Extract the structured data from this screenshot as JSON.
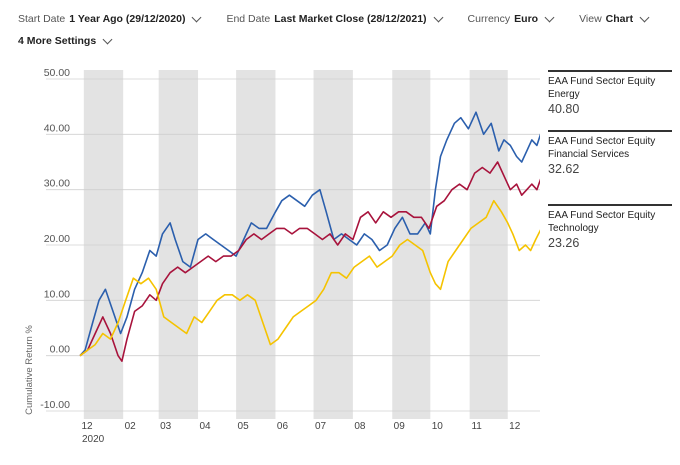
{
  "settings": {
    "start_label": "Start Date",
    "start_value": "1 Year Ago (29/12/2020)",
    "end_label": "End Date",
    "end_value": "Last Market Close (28/12/2021)",
    "currency_label": "Currency",
    "currency_value": "Euro",
    "view_label": "View",
    "view_value": "Chart",
    "more_label": "4 More Settings"
  },
  "chart_data": {
    "type": "line",
    "ylabel": "Cumulative Return %",
    "ylim": [
      -10,
      50
    ],
    "yticks": [
      50,
      40,
      30,
      20,
      10,
      0,
      -10
    ],
    "ytick_labels": [
      "50.00",
      "40.00",
      "30.00",
      "20.00",
      "10.00",
      "0.00",
      "-10.00"
    ],
    "xlim": [
      "2020-12-29",
      "2021-12-28"
    ],
    "xticks": [
      {
        "date": "2020-12-29",
        "label": "12",
        "sublabel": "2020"
      },
      {
        "date": "2021-02-01",
        "label": "02"
      },
      {
        "date": "2021-03-01",
        "label": "03"
      },
      {
        "date": "2021-04-01",
        "label": "04"
      },
      {
        "date": "2021-05-01",
        "label": "05"
      },
      {
        "date": "2021-06-01",
        "label": "06"
      },
      {
        "date": "2021-07-01",
        "label": "07"
      },
      {
        "date": "2021-08-01",
        "label": "08"
      },
      {
        "date": "2021-09-01",
        "label": "09"
      },
      {
        "date": "2021-10-01",
        "label": "10"
      },
      {
        "date": "2021-11-01",
        "label": "11"
      },
      {
        "date": "2021-12-01",
        "label": "12"
      }
    ],
    "shaded_bands": [
      [
        "2021-01-01",
        "2021-02-01"
      ],
      [
        "2021-03-01",
        "2021-04-01"
      ],
      [
        "2021-05-01",
        "2021-06-01"
      ],
      [
        "2021-07-01",
        "2021-08-01"
      ],
      [
        "2021-09-01",
        "2021-10-01"
      ],
      [
        "2021-11-01",
        "2021-12-01"
      ]
    ],
    "series": [
      {
        "name": "EAA Fund Sector Equity Energy",
        "last": "40.80",
        "color": "#2b5fad",
        "points": [
          [
            "2020-12-29",
            0
          ],
          [
            "2021-01-02",
            1
          ],
          [
            "2021-01-08",
            6
          ],
          [
            "2021-01-13",
            10
          ],
          [
            "2021-01-18",
            12
          ],
          [
            "2021-01-24",
            8
          ],
          [
            "2021-01-30",
            4
          ],
          [
            "2021-02-04",
            7
          ],
          [
            "2021-02-10",
            12
          ],
          [
            "2021-02-16",
            15
          ],
          [
            "2021-02-22",
            19
          ],
          [
            "2021-02-27",
            18
          ],
          [
            "2021-03-04",
            22
          ],
          [
            "2021-03-10",
            24
          ],
          [
            "2021-03-14",
            21
          ],
          [
            "2021-03-20",
            17
          ],
          [
            "2021-03-26",
            16
          ],
          [
            "2021-04-01",
            21
          ],
          [
            "2021-04-07",
            22
          ],
          [
            "2021-04-13",
            21
          ],
          [
            "2021-04-19",
            20
          ],
          [
            "2021-04-25",
            19
          ],
          [
            "2021-05-01",
            18
          ],
          [
            "2021-05-07",
            21
          ],
          [
            "2021-05-13",
            24
          ],
          [
            "2021-05-19",
            23
          ],
          [
            "2021-05-25",
            23
          ],
          [
            "2021-06-01",
            26
          ],
          [
            "2021-06-06",
            28
          ],
          [
            "2021-06-12",
            29
          ],
          [
            "2021-06-18",
            28
          ],
          [
            "2021-06-24",
            27
          ],
          [
            "2021-06-30",
            29
          ],
          [
            "2021-07-06",
            30
          ],
          [
            "2021-07-11",
            26
          ],
          [
            "2021-07-17",
            21
          ],
          [
            "2021-07-23",
            22
          ],
          [
            "2021-07-29",
            21
          ],
          [
            "2021-08-04",
            20
          ],
          [
            "2021-08-10",
            22
          ],
          [
            "2021-08-16",
            21
          ],
          [
            "2021-08-22",
            19
          ],
          [
            "2021-08-28",
            20
          ],
          [
            "2021-09-03",
            23
          ],
          [
            "2021-09-09",
            25
          ],
          [
            "2021-09-15",
            22
          ],
          [
            "2021-09-21",
            22
          ],
          [
            "2021-09-27",
            24
          ],
          [
            "2021-10-01",
            22
          ],
          [
            "2021-10-05",
            30
          ],
          [
            "2021-10-09",
            36
          ],
          [
            "2021-10-14",
            39
          ],
          [
            "2021-10-20",
            42
          ],
          [
            "2021-10-25",
            43
          ],
          [
            "2021-10-31",
            41
          ],
          [
            "2021-11-06",
            44
          ],
          [
            "2021-11-12",
            40
          ],
          [
            "2021-11-18",
            42
          ],
          [
            "2021-11-24",
            37
          ],
          [
            "2021-11-28",
            39
          ],
          [
            "2021-12-03",
            38
          ],
          [
            "2021-12-08",
            36
          ],
          [
            "2021-12-12",
            35
          ],
          [
            "2021-12-16",
            37
          ],
          [
            "2021-12-20",
            39
          ],
          [
            "2021-12-24",
            38
          ],
          [
            "2021-12-28",
            40.8
          ]
        ]
      },
      {
        "name": "EAA Fund Sector Equity Financial Services",
        "last": "32.62",
        "color": "#a8133c",
        "points": [
          [
            "2020-12-29",
            0
          ],
          [
            "2021-01-04",
            1
          ],
          [
            "2021-01-10",
            4
          ],
          [
            "2021-01-16",
            7
          ],
          [
            "2021-01-22",
            4
          ],
          [
            "2021-01-28",
            0
          ],
          [
            "2021-01-31",
            -1
          ],
          [
            "2021-02-04",
            3
          ],
          [
            "2021-02-10",
            8
          ],
          [
            "2021-02-16",
            9
          ],
          [
            "2021-02-22",
            11
          ],
          [
            "2021-02-27",
            10
          ],
          [
            "2021-03-04",
            13
          ],
          [
            "2021-03-10",
            15
          ],
          [
            "2021-03-16",
            16
          ],
          [
            "2021-03-22",
            15
          ],
          [
            "2021-03-28",
            16
          ],
          [
            "2021-04-03",
            17
          ],
          [
            "2021-04-09",
            18
          ],
          [
            "2021-04-15",
            17
          ],
          [
            "2021-04-21",
            18
          ],
          [
            "2021-04-27",
            18
          ],
          [
            "2021-05-03",
            19
          ],
          [
            "2021-05-09",
            21
          ],
          [
            "2021-05-15",
            22
          ],
          [
            "2021-05-21",
            21
          ],
          [
            "2021-05-27",
            22
          ],
          [
            "2021-06-02",
            23
          ],
          [
            "2021-06-08",
            23
          ],
          [
            "2021-06-14",
            22
          ],
          [
            "2021-06-20",
            23
          ],
          [
            "2021-06-26",
            23
          ],
          [
            "2021-07-02",
            22
          ],
          [
            "2021-07-08",
            21
          ],
          [
            "2021-07-14",
            22
          ],
          [
            "2021-07-20",
            20
          ],
          [
            "2021-07-26",
            22
          ],
          [
            "2021-08-01",
            21
          ],
          [
            "2021-08-07",
            25
          ],
          [
            "2021-08-13",
            26
          ],
          [
            "2021-08-19",
            24
          ],
          [
            "2021-08-25",
            26
          ],
          [
            "2021-08-31",
            25
          ],
          [
            "2021-09-06",
            26
          ],
          [
            "2021-09-12",
            26
          ],
          [
            "2021-09-18",
            25
          ],
          [
            "2021-09-24",
            25
          ],
          [
            "2021-09-30",
            23
          ],
          [
            "2021-10-06",
            27
          ],
          [
            "2021-10-12",
            28
          ],
          [
            "2021-10-18",
            30
          ],
          [
            "2021-10-24",
            31
          ],
          [
            "2021-10-30",
            30
          ],
          [
            "2021-11-05",
            33
          ],
          [
            "2021-11-11",
            34
          ],
          [
            "2021-11-17",
            33
          ],
          [
            "2021-11-23",
            35
          ],
          [
            "2021-11-29",
            32
          ],
          [
            "2021-12-03",
            30
          ],
          [
            "2021-12-08",
            31
          ],
          [
            "2021-12-12",
            29
          ],
          [
            "2021-12-16",
            30
          ],
          [
            "2021-12-20",
            31
          ],
          [
            "2021-12-24",
            30
          ],
          [
            "2021-12-28",
            32.62
          ]
        ]
      },
      {
        "name": "EAA Fund Sector Equity Technology",
        "last": "23.26",
        "color": "#f5c300",
        "points": [
          [
            "2020-12-29",
            0
          ],
          [
            "2021-01-04",
            1
          ],
          [
            "2021-01-10",
            2
          ],
          [
            "2021-01-16",
            4
          ],
          [
            "2021-01-22",
            3
          ],
          [
            "2021-01-28",
            6
          ],
          [
            "2021-02-03",
            10
          ],
          [
            "2021-02-09",
            14
          ],
          [
            "2021-02-15",
            13
          ],
          [
            "2021-02-21",
            14
          ],
          [
            "2021-02-27",
            12
          ],
          [
            "2021-03-05",
            7
          ],
          [
            "2021-03-11",
            6
          ],
          [
            "2021-03-17",
            5
          ],
          [
            "2021-03-23",
            4
          ],
          [
            "2021-03-29",
            7
          ],
          [
            "2021-04-04",
            6
          ],
          [
            "2021-04-10",
            8
          ],
          [
            "2021-04-16",
            10
          ],
          [
            "2021-04-22",
            11
          ],
          [
            "2021-04-28",
            11
          ],
          [
            "2021-05-04",
            10
          ],
          [
            "2021-05-10",
            11
          ],
          [
            "2021-05-16",
            10
          ],
          [
            "2021-05-22",
            6
          ],
          [
            "2021-05-28",
            2
          ],
          [
            "2021-06-03",
            3
          ],
          [
            "2021-06-09",
            5
          ],
          [
            "2021-06-15",
            7
          ],
          [
            "2021-06-21",
            8
          ],
          [
            "2021-06-27",
            9
          ],
          [
            "2021-07-03",
            10
          ],
          [
            "2021-07-09",
            12
          ],
          [
            "2021-07-15",
            15
          ],
          [
            "2021-07-21",
            15
          ],
          [
            "2021-07-27",
            14
          ],
          [
            "2021-08-02",
            16
          ],
          [
            "2021-08-08",
            17
          ],
          [
            "2021-08-14",
            18
          ],
          [
            "2021-08-20",
            16
          ],
          [
            "2021-08-26",
            17
          ],
          [
            "2021-09-01",
            18
          ],
          [
            "2021-09-07",
            20
          ],
          [
            "2021-09-13",
            21
          ],
          [
            "2021-09-19",
            20
          ],
          [
            "2021-09-25",
            19
          ],
          [
            "2021-10-01",
            15
          ],
          [
            "2021-10-05",
            13
          ],
          [
            "2021-10-09",
            12
          ],
          [
            "2021-10-15",
            17
          ],
          [
            "2021-10-21",
            19
          ],
          [
            "2021-10-27",
            21
          ],
          [
            "2021-11-02",
            23
          ],
          [
            "2021-11-08",
            24
          ],
          [
            "2021-11-14",
            25
          ],
          [
            "2021-11-20",
            28
          ],
          [
            "2021-11-26",
            26
          ],
          [
            "2021-12-01",
            24
          ],
          [
            "2021-12-05",
            22
          ],
          [
            "2021-12-10",
            19
          ],
          [
            "2021-12-15",
            20
          ],
          [
            "2021-12-19",
            19
          ],
          [
            "2021-12-23",
            21
          ],
          [
            "2021-12-28",
            23.26
          ]
        ]
      }
    ]
  }
}
